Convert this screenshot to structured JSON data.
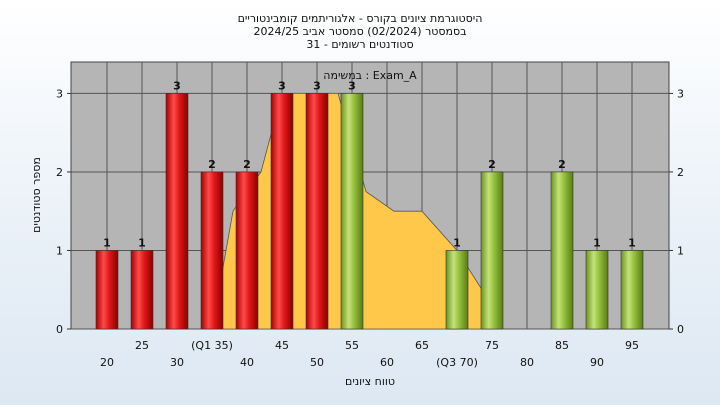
{
  "chart_data": {
    "type": "bar",
    "title_lines": [
      "היסטוגרמת ציונים בקורס - אלגוריתמים קומבינטוריים",
      "בסמסטר  (02/2024)  סמסטר אביב 2024/25",
      "31 - סטודנטים רשומים"
    ],
    "subtitle": "במשימה : Exam_A",
    "xlabel": "טווח ציונים",
    "ylabel": "מספר סטודנטים",
    "ylim": [
      0,
      3.4
    ],
    "yticks": [
      0,
      1,
      2,
      3
    ],
    "grid": true,
    "x_ticks": [
      {
        "value": 20,
        "label": "20"
      },
      {
        "value": 25,
        "label": "25"
      },
      {
        "value": 30,
        "label": "30"
      },
      {
        "value": 35,
        "label": "(Q1 35)"
      },
      {
        "value": 40,
        "label": "40"
      },
      {
        "value": 45,
        "label": "45"
      },
      {
        "value": 50,
        "label": "50"
      },
      {
        "value": 55,
        "label": "55"
      },
      {
        "value": 60,
        "label": "60"
      },
      {
        "value": 65,
        "label": "65"
      },
      {
        "value": 70,
        "label": "(Q3 70)"
      },
      {
        "value": 75,
        "label": "75"
      },
      {
        "value": 80,
        "label": "80"
      },
      {
        "value": 85,
        "label": "85"
      },
      {
        "value": 90,
        "label": "90"
      },
      {
        "value": 95,
        "label": "95"
      }
    ],
    "series": [
      {
        "color": "#e02020",
        "x": [
          20,
          25,
          30,
          35,
          40,
          45,
          50
        ],
        "values": [
          1,
          1,
          3,
          2,
          2,
          3,
          3
        ]
      },
      {
        "color": "#8fbf3a",
        "x": [
          55,
          70,
          75,
          85,
          90,
          95
        ],
        "values": [
          3,
          1,
          2,
          2,
          1,
          1
        ]
      }
    ],
    "area": {
      "color": "#ffc84a",
      "points": [
        [
          35,
          0
        ],
        [
          38,
          1.5
        ],
        [
          42,
          2
        ],
        [
          45,
          3
        ],
        [
          53,
          3
        ],
        [
          57,
          1.75
        ],
        [
          61,
          1.5
        ],
        [
          65,
          1.5
        ],
        [
          70,
          1
        ],
        [
          75,
          0.3
        ]
      ]
    },
    "colors": {
      "plot_background": "#b5b5b5",
      "grid": "#555555",
      "red_bar": "#e02020",
      "green_bar": "#8fbf3a",
      "area": "#ffc84a"
    }
  }
}
